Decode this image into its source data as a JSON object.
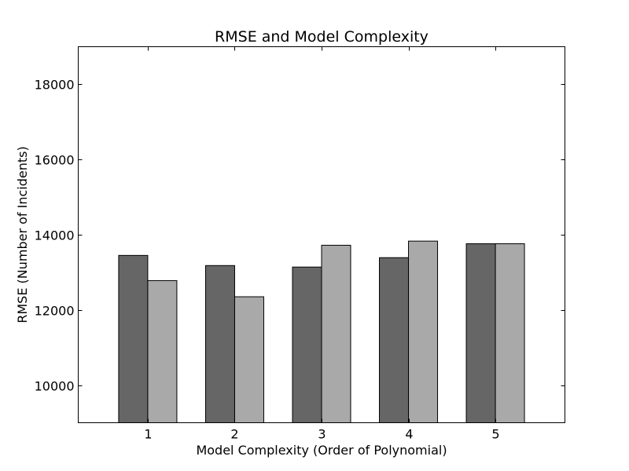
{
  "chart_data": {
    "type": "bar",
    "title": "RMSE and Model Complexity",
    "xlabel": "Model Complexity (Order of Polynomial)",
    "ylabel": "RMSE (Number of Incidents)",
    "categories": [
      "1",
      "2",
      "3",
      "4",
      "5"
    ],
    "ylim": [
      9000,
      19000
    ],
    "yticks": [
      10000,
      12000,
      14000,
      16000,
      18000
    ],
    "grid": false,
    "legend": "none",
    "series": [
      {
        "values": [
          13450,
          13180,
          13140,
          13390,
          13760
        ],
        "color": "#666666"
      },
      {
        "values": [
          12780,
          12350,
          13720,
          13830,
          13760
        ],
        "color": "#a9a9a9"
      }
    ]
  }
}
